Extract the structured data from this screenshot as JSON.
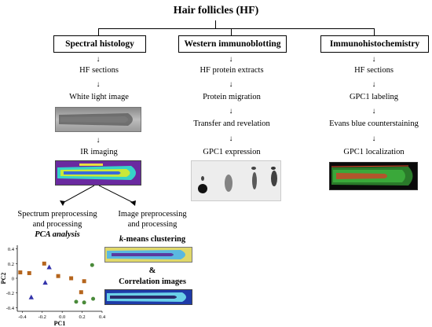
{
  "title": "Hair follicles (HF)",
  "columns": [
    {
      "header": "Spectral histology"
    },
    {
      "header": "Western immunoblotting"
    },
    {
      "header": "Immunohistochemistry"
    }
  ],
  "spectral": {
    "steps": [
      "HF sections",
      "White light image",
      "IR imaging"
    ],
    "branch_left": {
      "line1": "Spectrum preprocessing",
      "line2": "and processing",
      "emph": "PCA analysis"
    },
    "branch_right": {
      "line1": "Image preprocessing",
      "line2": "and processing"
    },
    "kmeans": {
      "emph": "k",
      "rest": "-means clustering"
    },
    "ampersand": "&",
    "correlation": "Correlation images"
  },
  "western": {
    "steps": [
      "HF protein extracts",
      "Protein migration",
      "Transfer and revelation",
      "GPC1 expression"
    ]
  },
  "ihc": {
    "steps": [
      "HF sections",
      "GPC1 labeling",
      "Evans blue counterstaining",
      "GPC1 localization"
    ]
  },
  "chart_data": {
    "type": "scatter",
    "xlabel": "PC1",
    "ylabel": "PC2",
    "xlim": [
      -0.45,
      0.4
    ],
    "ylim": [
      -0.45,
      0.45
    ],
    "xticks": [
      "-0.4",
      "-0.2",
      "0.0",
      "0.2",
      "0.4"
    ],
    "yticks": [
      "0.4",
      "0.2",
      "0",
      "-0.2",
      "-0.4"
    ],
    "series": [
      {
        "marker": "square",
        "color": "#b5651d",
        "x": [
          -0.42,
          -0.33,
          -0.18,
          -0.04,
          0.09,
          0.19,
          0.22
        ],
        "y": [
          0.08,
          0.07,
          0.2,
          0.03,
          0.0,
          -0.19,
          -0.04
        ]
      },
      {
        "marker": "triangle",
        "color": "#3333aa",
        "x": [
          -0.31,
          -0.17,
          -0.13
        ],
        "y": [
          -0.26,
          -0.06,
          0.15
        ]
      },
      {
        "marker": "circle",
        "color": "#4a8a3a",
        "x": [
          0.14,
          0.22,
          0.3,
          0.31
        ],
        "y": [
          -0.32,
          -0.33,
          0.18,
          -0.28
        ]
      }
    ]
  },
  "colors": {
    "ir_background": "#6a2aa0",
    "ir_tissue": "#36d3c8",
    "ir_core": "#c8e83a",
    "ihc_background": "#0a0a0a",
    "ihc_tissue": "#3aa83a",
    "ihc_red": "#c8462a"
  }
}
